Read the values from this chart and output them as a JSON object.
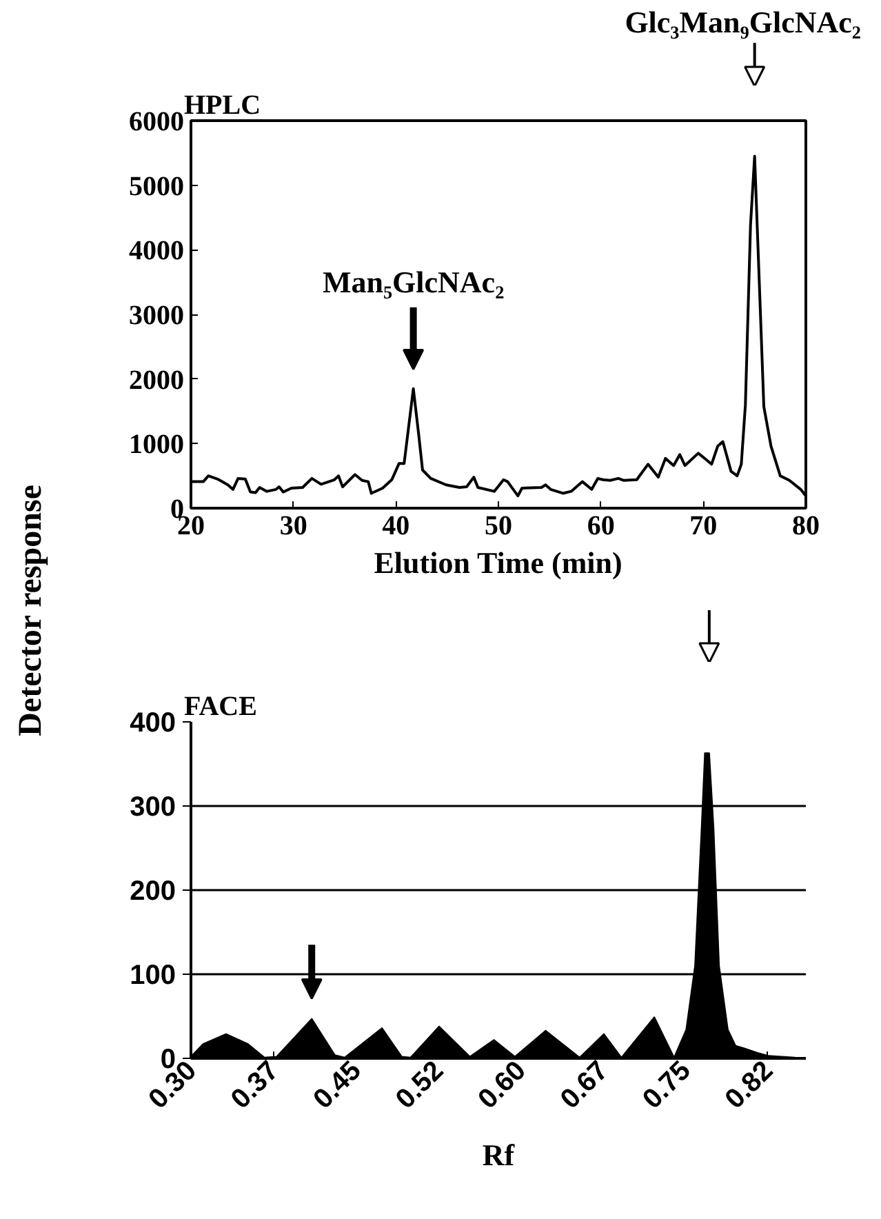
{
  "chart_data": [
    {
      "type": "line",
      "title": "HPLC",
      "xlabel": "Elution Time (min)",
      "ylabel": "Detector response",
      "annotations": [
        {
          "text": "Man₅GlcNAc₂",
          "x": 41.7,
          "y": 1850
        },
        "Glc₃Man₉GlcNAc₂"
      ],
      "x": [
        20,
        21.2,
        21.7,
        22.6,
        23.6,
        24.1,
        24.6,
        25.3,
        25.8,
        26.3,
        26.7,
        27.4,
        28.3,
        28.6,
        29.0,
        29.8,
        30.9,
        31.8,
        32.7,
        34.0,
        34.4,
        34.8,
        36.0,
        36.7,
        37.3,
        37.6,
        38.7,
        39.6,
        40.3,
        40.8,
        41.7,
        42.2,
        42.6,
        43.4,
        44.9,
        46.2,
        46.9,
        47.6,
        48.0,
        49.6,
        50.5,
        50.9,
        51.9,
        52.3,
        54.2,
        54.6,
        55.1,
        56.3,
        57.1,
        58.2,
        59.1,
        59.7,
        60.2,
        60.9,
        61.7,
        62.2,
        63.5,
        64.6,
        65.6,
        66.3,
        67.1,
        67.7,
        68.2,
        69.5,
        70.2,
        70.8,
        71.4,
        71.9,
        72.7,
        73.3,
        73.7,
        74.1,
        74.6,
        75.0,
        75.5,
        75.9,
        76.6,
        77.5,
        78.4,
        79.5,
        80
      ],
      "values": [
        410,
        410,
        500,
        450,
        360,
        290,
        460,
        450,
        250,
        240,
        320,
        260,
        290,
        330,
        250,
        310,
        320,
        460,
        370,
        440,
        500,
        330,
        520,
        430,
        410,
        230,
        310,
        440,
        690,
        690,
        1850,
        1170,
        590,
        460,
        360,
        320,
        330,
        480,
        320,
        260,
        440,
        410,
        190,
        310,
        320,
        360,
        290,
        230,
        260,
        410,
        290,
        460,
        440,
        430,
        460,
        430,
        440,
        680,
        480,
        770,
        660,
        830,
        660,
        850,
        760,
        680,
        960,
        1030,
        570,
        500,
        680,
        1600,
        4380,
        5450,
        3310,
        1570,
        960,
        500,
        430,
        290,
        190
      ],
      "color": "#000000",
      "xlim": [
        20,
        80
      ],
      "xticks": [
        20,
        30,
        40,
        50,
        60,
        70,
        80
      ],
      "ylim": [
        0,
        6000
      ],
      "yticks": [
        0,
        1000,
        2000,
        3000,
        4000,
        5000,
        6000
      ],
      "grid": false
    },
    {
      "type": "area",
      "title": "FACE",
      "xlabel": "Rf",
      "x": [
        0.3,
        0.311,
        0.332,
        0.352,
        0.367,
        0.378,
        0.41,
        0.431,
        0.44,
        0.474,
        0.492,
        0.5,
        0.526,
        0.554,
        0.576,
        0.595,
        0.623,
        0.654,
        0.676,
        0.692,
        0.722,
        0.74,
        0.751,
        0.759,
        0.765,
        0.768,
        0.772,
        0.776,
        0.781,
        0.789,
        0.796,
        0.804,
        0.815,
        0.826,
        0.85
      ],
      "values": [
        2,
        17,
        29,
        17,
        1,
        2,
        47,
        4,
        1,
        36,
        2,
        1,
        38,
        2,
        22,
        2,
        33,
        1,
        29,
        1,
        49,
        1,
        34,
        110,
        274,
        363,
        363,
        274,
        110,
        34,
        15,
        12,
        7,
        3,
        1
      ],
      "color": "#000000",
      "xlim": [
        0.3,
        0.86
      ],
      "xticks": [
        {
          "value": 0.3,
          "label": "0.30"
        },
        {
          "value": 0.375,
          "label": "0.37"
        },
        {
          "value": 0.45,
          "label": "0.45"
        },
        {
          "value": 0.525,
          "label": "0.52"
        },
        {
          "value": 0.6,
          "label": "0.60"
        },
        {
          "value": 0.675,
          "label": "0.67"
        },
        {
          "value": 0.75,
          "label": "0.75"
        },
        {
          "value": 0.825,
          "label": "0.82"
        }
      ],
      "ylim": [
        0,
        400
      ],
      "yticks": [
        0,
        100,
        200,
        300,
        400
      ],
      "grid": "y"
    }
  ]
}
